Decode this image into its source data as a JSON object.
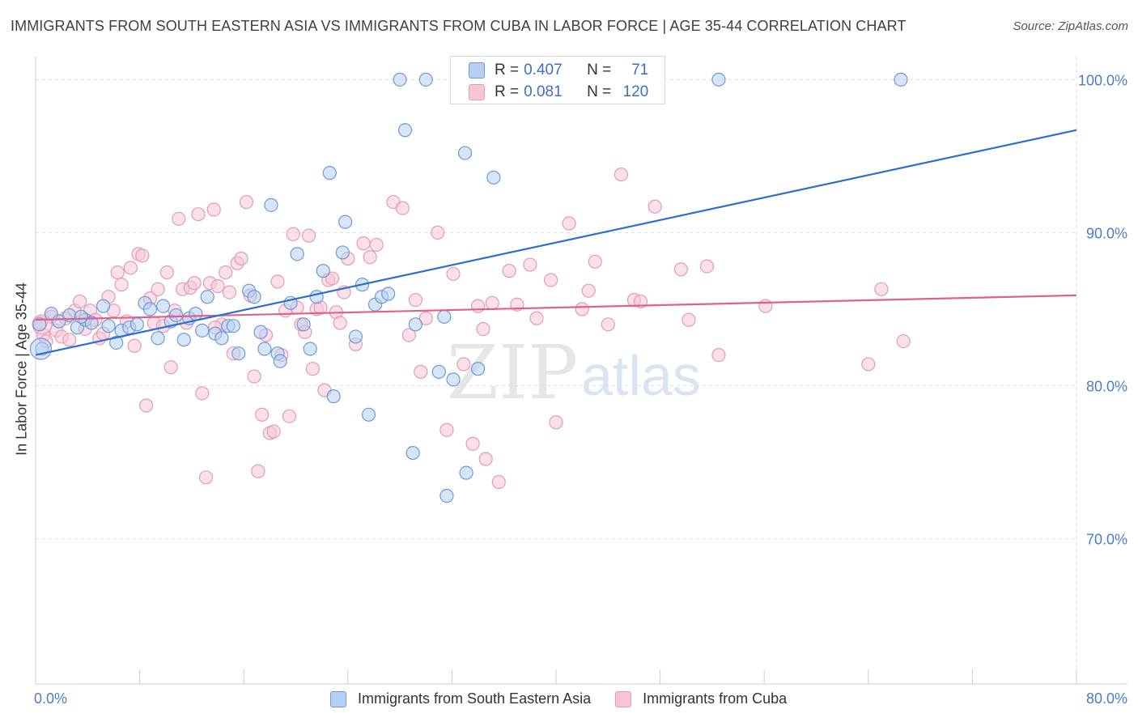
{
  "header": {
    "title": "IMMIGRANTS FROM SOUTH EASTERN ASIA VS IMMIGRANTS FROM CUBA IN LABOR FORCE | AGE 35-44 CORRELATION CHART",
    "source": "Source: ZipAtlas.com"
  },
  "watermark": {
    "zip": "ZIP",
    "atlas": "atlas"
  },
  "stats": [
    {
      "r_label": "R =",
      "r_value": "0.407",
      "n_label": "N =",
      "n_value": "71"
    },
    {
      "r_label": "R =",
      "r_value": "0.081",
      "n_label": "N =",
      "n_value": "120"
    }
  ],
  "chart_data": {
    "type": "scatter",
    "title": "IMMIGRANTS FROM SOUTH EASTERN ASIA VS IMMIGRANTS FROM CUBA IN LABOR FORCE | AGE 35-44 CORRELATION CHART",
    "xlabel": "",
    "ylabel": "In Labor Force | Age 35-44",
    "xlim": [
      0,
      80
    ],
    "ylim": [
      60.5,
      101.5
    ],
    "x_tick_labels": [
      "0.0%",
      "80.0%"
    ],
    "y_ticks": [
      70,
      80,
      90,
      100
    ],
    "y_tick_labels": [
      "70.0%",
      "80.0%",
      "90.0%",
      "100.0%"
    ],
    "grid": true,
    "legend_position": "bottom",
    "colors": {
      "sea_fill": "#b7cff2",
      "sea_edge": "#6d9ad8",
      "sea_line": "#2f6fcc",
      "cuba_fill": "#f6c6d5",
      "cuba_edge": "#e59ab4",
      "cuba_line": "#e0608a",
      "tick_label": "#4a7cc9"
    },
    "series": [
      {
        "name": "Immigrants from South Eastern Asia",
        "trend": {
          "x": [
            0,
            80
          ],
          "y": [
            82.0,
            96.7
          ]
        },
        "points": [
          [
            0.5,
            82.4
          ],
          [
            1.2,
            84.7
          ],
          [
            1.8,
            84.2
          ],
          [
            2.6,
            84.6
          ],
          [
            3.2,
            83.8
          ],
          [
            3.8,
            84.3
          ],
          [
            4.3,
            84.1
          ],
          [
            5.2,
            85.2
          ],
          [
            5.6,
            83.9
          ],
          [
            6.2,
            82.8
          ],
          [
            6.6,
            83.6
          ],
          [
            7.2,
            83.8
          ],
          [
            7.8,
            84.0
          ],
          [
            8.4,
            85.4
          ],
          [
            8.8,
            85.0
          ],
          [
            9.4,
            83.1
          ],
          [
            9.8,
            85.2
          ],
          [
            10.4,
            84.2
          ],
          [
            10.8,
            84.6
          ],
          [
            11.4,
            83.0
          ],
          [
            11.8,
            84.4
          ],
          [
            12.3,
            84.7
          ],
          [
            12.8,
            83.6
          ],
          [
            13.2,
            85.8
          ],
          [
            13.8,
            83.4
          ],
          [
            14.3,
            83.1
          ],
          [
            14.8,
            83.9
          ],
          [
            15.2,
            83.9
          ],
          [
            15.6,
            82.1
          ],
          [
            16.4,
            86.2
          ],
          [
            16.8,
            85.8
          ],
          [
            17.3,
            83.5
          ],
          [
            17.6,
            82.4
          ],
          [
            18.1,
            91.8
          ],
          [
            18.6,
            82.1
          ],
          [
            18.8,
            81.6
          ],
          [
            19.6,
            85.4
          ],
          [
            20.1,
            88.6
          ],
          [
            20.6,
            84.0
          ],
          [
            21.1,
            82.4
          ],
          [
            21.6,
            85.8
          ],
          [
            22.1,
            87.5
          ],
          [
            22.6,
            93.9
          ],
          [
            22.9,
            79.3
          ],
          [
            23.6,
            88.7
          ],
          [
            23.8,
            90.7
          ],
          [
            24.6,
            83.2
          ],
          [
            25.1,
            86.6
          ],
          [
            25.6,
            78.1
          ],
          [
            26.1,
            85.3
          ],
          [
            26.6,
            85.8
          ],
          [
            27.1,
            86.0
          ],
          [
            28.0,
            100.0
          ],
          [
            28.4,
            96.7
          ],
          [
            29.0,
            75.6
          ],
          [
            29.2,
            84.0
          ],
          [
            30.0,
            100.0
          ],
          [
            31.0,
            80.9
          ],
          [
            31.4,
            84.5
          ],
          [
            31.6,
            72.8
          ],
          [
            32.1,
            80.4
          ],
          [
            33.0,
            95.2
          ],
          [
            33.1,
            74.3
          ],
          [
            34.0,
            81.1
          ],
          [
            35.2,
            93.6
          ],
          [
            36.5,
            100.0
          ],
          [
            41.5,
            100.0
          ],
          [
            52.5,
            100.0
          ],
          [
            66.5,
            100.0
          ],
          [
            0.3,
            84.0
          ],
          [
            3.5,
            84.5
          ]
        ]
      },
      {
        "name": "Immigrants from Cuba",
        "trend": {
          "x": [
            0,
            80
          ],
          "y": [
            84.3,
            85.9
          ]
        },
        "points": [
          [
            0.4,
            84.1
          ],
          [
            0.6,
            83.3
          ],
          [
            0.8,
            82.9
          ],
          [
            1.2,
            84.5
          ],
          [
            1.6,
            83.6
          ],
          [
            2.0,
            83.2
          ],
          [
            2.3,
            84.4
          ],
          [
            2.6,
            83.0
          ],
          [
            3.0,
            84.9
          ],
          [
            3.4,
            85.5
          ],
          [
            3.8,
            83.7
          ],
          [
            4.2,
            84.9
          ],
          [
            4.6,
            84.3
          ],
          [
            4.9,
            83.1
          ],
          [
            5.2,
            83.4
          ],
          [
            5.6,
            85.8
          ],
          [
            6.0,
            84.9
          ],
          [
            6.3,
            87.4
          ],
          [
            6.6,
            86.6
          ],
          [
            7.0,
            84.2
          ],
          [
            7.3,
            87.7
          ],
          [
            7.6,
            82.6
          ],
          [
            7.9,
            88.6
          ],
          [
            8.2,
            88.5
          ],
          [
            8.5,
            78.7
          ],
          [
            8.8,
            85.7
          ],
          [
            9.1,
            84.1
          ],
          [
            9.4,
            86.3
          ],
          [
            9.8,
            83.9
          ],
          [
            10.1,
            87.4
          ],
          [
            10.4,
            81.2
          ],
          [
            10.7,
            84.9
          ],
          [
            11.0,
            90.9
          ],
          [
            11.3,
            86.3
          ],
          [
            11.6,
            84.1
          ],
          [
            11.9,
            86.4
          ],
          [
            12.2,
            86.7
          ],
          [
            12.5,
            91.2
          ],
          [
            12.8,
            79.5
          ],
          [
            13.1,
            74.0
          ],
          [
            13.4,
            86.7
          ],
          [
            13.7,
            91.5
          ],
          [
            14.0,
            86.5
          ],
          [
            14.3,
            84.0
          ],
          [
            14.6,
            87.4
          ],
          [
            14.9,
            86.1
          ],
          [
            15.2,
            82.1
          ],
          [
            15.5,
            88.0
          ],
          [
            15.8,
            88.3
          ],
          [
            16.2,
            92.0
          ],
          [
            16.5,
            85.9
          ],
          [
            16.8,
            80.6
          ],
          [
            17.1,
            74.4
          ],
          [
            17.4,
            78.1
          ],
          [
            17.7,
            83.3
          ],
          [
            18.0,
            76.9
          ],
          [
            18.3,
            77.0
          ],
          [
            18.6,
            86.8
          ],
          [
            18.9,
            82.0
          ],
          [
            19.2,
            84.9
          ],
          [
            19.5,
            78.0
          ],
          [
            19.8,
            89.9
          ],
          [
            20.1,
            85.1
          ],
          [
            20.4,
            84.0
          ],
          [
            20.7,
            83.5
          ],
          [
            21.0,
            89.8
          ],
          [
            21.3,
            81.1
          ],
          [
            21.6,
            85.0
          ],
          [
            21.9,
            85.1
          ],
          [
            22.2,
            79.7
          ],
          [
            22.5,
            86.9
          ],
          [
            22.8,
            87.0
          ],
          [
            23.1,
            84.8
          ],
          [
            23.4,
            84.1
          ],
          [
            23.7,
            86.1
          ],
          [
            24.0,
            88.3
          ],
          [
            24.6,
            82.7
          ],
          [
            25.2,
            89.3
          ],
          [
            25.7,
            88.4
          ],
          [
            26.2,
            89.2
          ],
          [
            27.5,
            92.0
          ],
          [
            28.2,
            91.6
          ],
          [
            29.2,
            85.6
          ],
          [
            29.6,
            80.9
          ],
          [
            30.0,
            84.4
          ],
          [
            30.9,
            90.0
          ],
          [
            31.6,
            77.1
          ],
          [
            32.1,
            87.3
          ],
          [
            32.9,
            81.4
          ],
          [
            33.6,
            76.2
          ],
          [
            34.0,
            85.2
          ],
          [
            34.4,
            83.7
          ],
          [
            34.6,
            75.2
          ],
          [
            35.1,
            85.4
          ],
          [
            35.6,
            73.7
          ],
          [
            36.4,
            87.5
          ],
          [
            37.0,
            85.3
          ],
          [
            38.0,
            87.9
          ],
          [
            39.6,
            86.9
          ],
          [
            40.0,
            77.6
          ],
          [
            41.0,
            90.6
          ],
          [
            42.0,
            85.0
          ],
          [
            42.5,
            86.2
          ],
          [
            43.0,
            88.1
          ],
          [
            44.0,
            84.0
          ],
          [
            45.0,
            93.8
          ],
          [
            46.0,
            85.6
          ],
          [
            46.5,
            85.5
          ],
          [
            47.6,
            91.7
          ],
          [
            49.6,
            87.6
          ],
          [
            50.2,
            84.3
          ],
          [
            51.6,
            87.8
          ],
          [
            52.5,
            82.0
          ],
          [
            56.1,
            85.2
          ],
          [
            64.0,
            81.4
          ],
          [
            65.0,
            86.3
          ],
          [
            66.7,
            82.9
          ],
          [
            28.7,
            83.3
          ],
          [
            38.5,
            84.4
          ],
          [
            13.8,
            83.8
          ]
        ]
      }
    ]
  },
  "legend": {
    "items": [
      {
        "label": "Immigrants from South Eastern Asia"
      },
      {
        "label": "Immigrants from Cuba"
      }
    ]
  }
}
